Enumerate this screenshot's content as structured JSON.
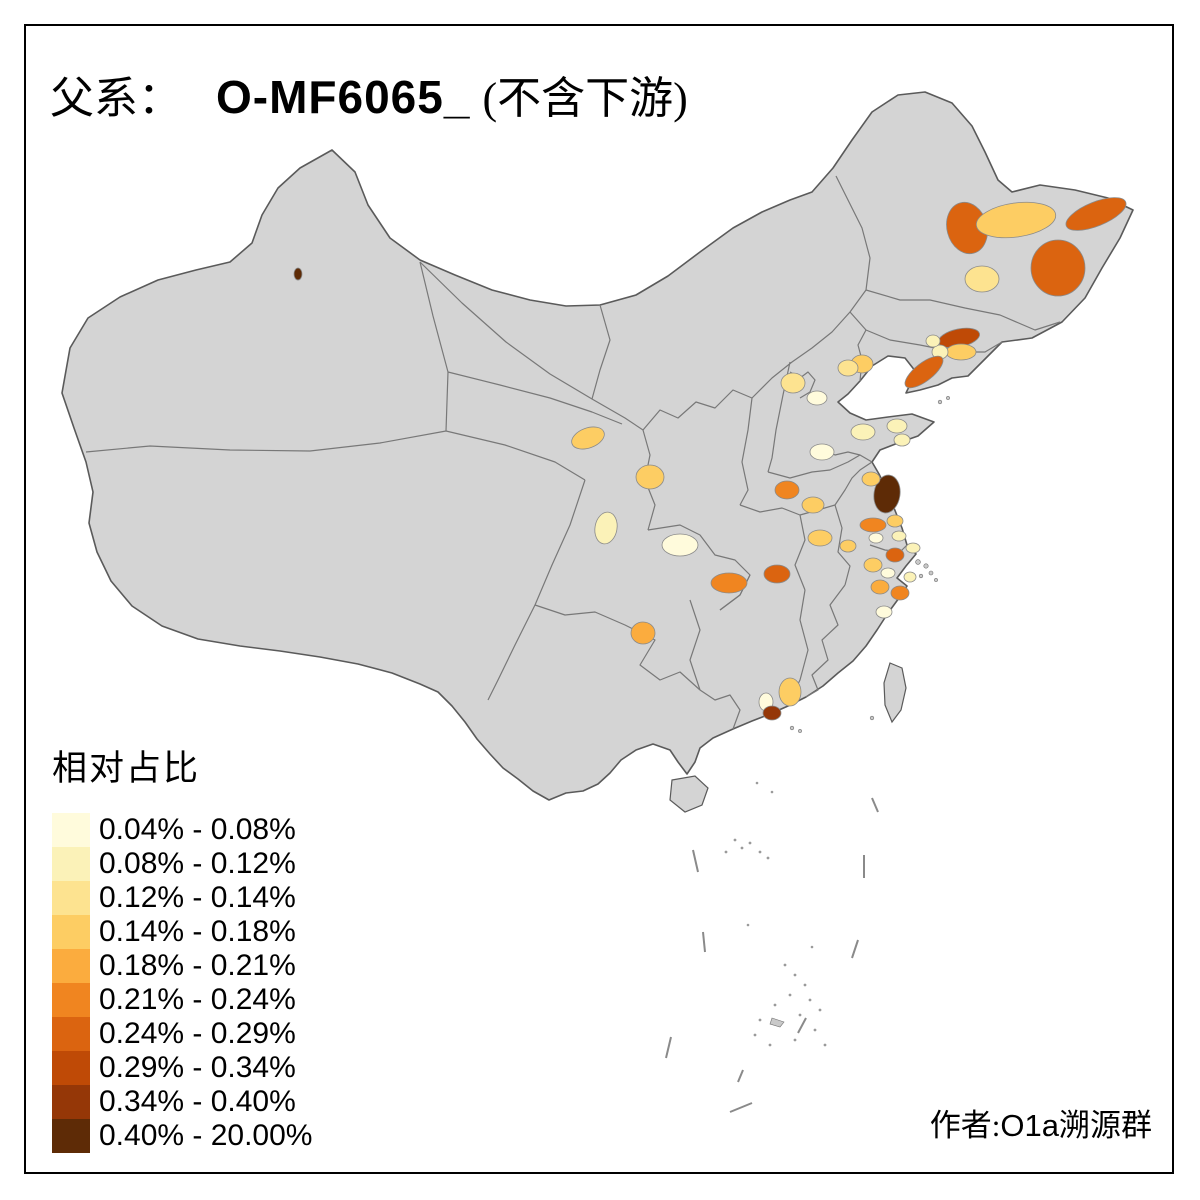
{
  "title": {
    "prefix": "父系：",
    "code": "O-MF6065_",
    "suffix": "(不含下游)"
  },
  "legend": {
    "title": "相对占比",
    "classes": [
      {
        "label": "0.04% - 0.08%",
        "color": "#FFFBDC"
      },
      {
        "label": "0.08% - 0.12%",
        "color": "#FBF2B8"
      },
      {
        "label": "0.12% - 0.14%",
        "color": "#FDE390"
      },
      {
        "label": "0.14% - 0.18%",
        "color": "#FDCD63"
      },
      {
        "label": "0.18% - 0.21%",
        "color": "#FBAC3E"
      },
      {
        "label": "0.21% - 0.24%",
        "color": "#F08520"
      },
      {
        "label": "0.24% - 0.29%",
        "color": "#DB6410"
      },
      {
        "label": "0.29% - 0.34%",
        "color": "#BF4A06"
      },
      {
        "label": "0.34% - 0.40%",
        "color": "#953707"
      },
      {
        "label": "0.40% - 20.00%",
        "color": "#5E2B06"
      }
    ]
  },
  "attribution": {
    "prefix": "作者:",
    "group": "O1a",
    "suffix": "溯源群"
  },
  "map": {
    "land_color": "#D4D4D4",
    "outline_color": "#5A5A5A",
    "province_line_color": "#787878",
    "sea_color": "#FFFFFF",
    "regions": [
      {
        "class": 7
      },
      {
        "class": 4
      },
      {
        "class": 7
      },
      {
        "class": 7
      },
      {
        "class": 3
      },
      {
        "class": 8
      },
      {
        "class": 4
      },
      {
        "class": 2
      },
      {
        "class": 2
      },
      {
        "class": 7
      },
      {
        "class": 4
      },
      {
        "class": 3
      },
      {
        "class": 3
      },
      {
        "class": 1
      },
      {
        "class": 1
      },
      {
        "class": 2
      },
      {
        "class": 2
      },
      {
        "class": 2
      },
      {
        "class": 4
      },
      {
        "class": 4
      },
      {
        "class": 2
      },
      {
        "class": 1
      },
      {
        "class": 5
      },
      {
        "class": 6
      },
      {
        "class": 7
      },
      {
        "class": 6
      },
      {
        "class": 10
      },
      {
        "class": 4
      },
      {
        "class": 6
      },
      {
        "class": 4
      },
      {
        "class": 2
      },
      {
        "class": 1
      },
      {
        "class": 4
      },
      {
        "class": 4
      },
      {
        "class": 7
      },
      {
        "class": 4
      },
      {
        "class": 1
      },
      {
        "class": 5
      },
      {
        "class": 6
      },
      {
        "class": 2
      },
      {
        "class": 2
      },
      {
        "class": 1
      },
      {
        "class": 4
      },
      {
        "class": 4
      },
      {
        "class": 1
      },
      {
        "class": 9
      },
      {
        "class": 10
      }
    ]
  }
}
